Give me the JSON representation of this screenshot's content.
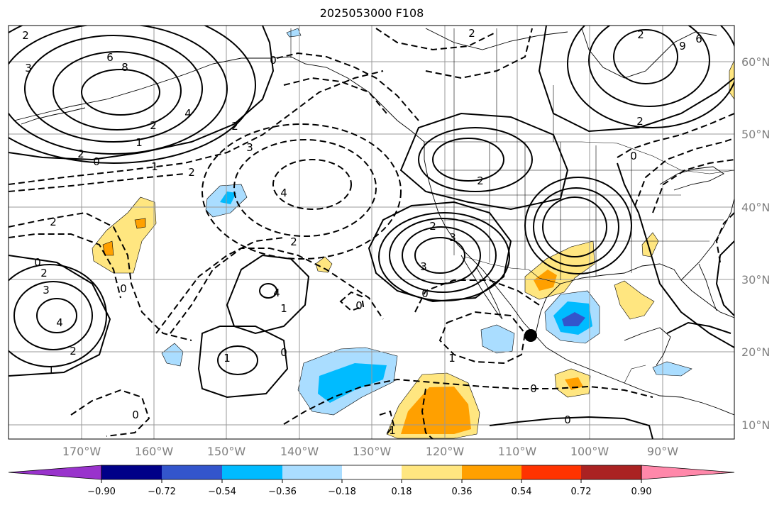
{
  "title": "2025053000 F108",
  "longitude_labels": [
    "170°W",
    "160°W",
    "150°W",
    "140°W",
    "130°W",
    "120°W",
    "110°W",
    "100°W",
    "90°W"
  ],
  "latitude_labels": [
    "60°N",
    "50°N",
    "40°N",
    "30°N",
    "20°N",
    "10°N"
  ],
  "colorbar": {
    "tick_labels": [
      "−0.90",
      "−0.72",
      "−0.54",
      "−0.36",
      "−0.18",
      "0.18",
      "0.36",
      "0.54",
      "0.72",
      "0.90"
    ],
    "colors": [
      "#9933cc",
      "#000088",
      "#3355cc",
      "#00bbff",
      "#aaddff",
      "#ffffff",
      "#ffe680",
      "#ffa000",
      "#ff3300",
      "#aa2222",
      "#ff88aa"
    ]
  },
  "contour_labels": [
    "2",
    "3",
    "6",
    "8",
    "0",
    "2",
    "2",
    "9",
    "6",
    "4",
    "2",
    "1",
    "2",
    "3",
    "2",
    "4",
    "0",
    "2",
    "1",
    "2",
    "3",
    "2",
    "4",
    "2",
    "1",
    "0",
    "2",
    "3",
    "0",
    "2",
    "3",
    "4",
    "0",
    "1",
    "0",
    "2",
    "1",
    "1",
    "0",
    "0",
    "0",
    "1",
    "0",
    "2",
    "0"
  ],
  "marker": {
    "name": "location-marker",
    "lon": -107.9,
    "lat": 22.5
  },
  "colors": {
    "axis": "#808080",
    "contour": "#000000",
    "grid": "#999999"
  }
}
